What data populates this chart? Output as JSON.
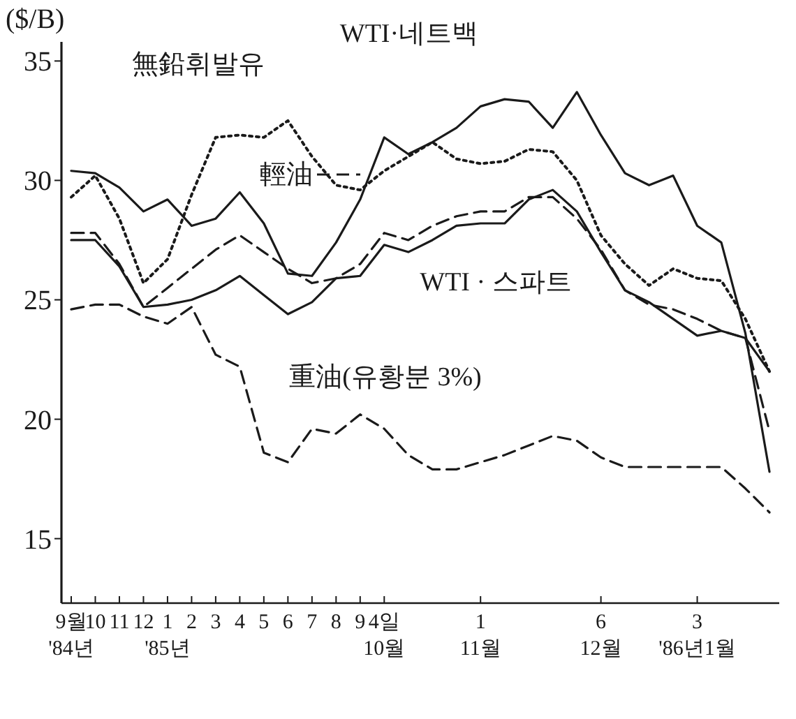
{
  "chart_data": {
    "type": "line",
    "ylabel": "($/B)",
    "categories": [
      "9월\n'84년",
      "10",
      "11",
      "12",
      "1\n'85년",
      "2",
      "3",
      "4",
      "5",
      "6",
      "7",
      "8",
      "9",
      "4일\n10월",
      null,
      null,
      null,
      "1\n11월",
      null,
      null,
      null,
      null,
      "6\n12월",
      null,
      null,
      null,
      "3\n'86년1월",
      null,
      null,
      null
    ],
    "ylim": [
      12.3,
      35.8
    ],
    "yticks": [
      15,
      20,
      25,
      30,
      35
    ],
    "grid": false,
    "marker": "none",
    "series": [
      {
        "name": "WTI·네트백",
        "color": "#1a1a1a",
        "line_style": "solid",
        "values": [
          30.4,
          30.3,
          29.7,
          28.7,
          29.2,
          28.1,
          28.4,
          29.5,
          28.2,
          26.1,
          26.0,
          27.4,
          29.2,
          31.8,
          31.1,
          31.6,
          32.2,
          33.1,
          33.4,
          33.3,
          32.2,
          33.7,
          31.9,
          30.3,
          29.8,
          30.2,
          28.1,
          27.4,
          23.6,
          17.8
        ]
      },
      {
        "name": "無鉛휘발유",
        "color": "#1a1a1a",
        "line_style": "dotted",
        "values": [
          29.3,
          30.2,
          28.4,
          25.7,
          26.7,
          29.4,
          31.8,
          31.9,
          31.8,
          32.5,
          31.0,
          29.8,
          29.6,
          30.4,
          31.0,
          31.6,
          30.9,
          30.7,
          30.8,
          31.3,
          31.2,
          30.0,
          27.7,
          26.5,
          25.6,
          26.3,
          25.9,
          25.8,
          24.2,
          22.0
        ]
      },
      {
        "name": "輕油",
        "color": "#1a1a1a",
        "line_style": "dashed",
        "values": [
          27.8,
          27.8,
          26.5,
          24.7,
          25.5,
          26.3,
          27.1,
          27.7,
          27.0,
          26.3,
          25.7,
          25.9,
          26.5,
          27.8,
          27.5,
          28.1,
          28.5,
          28.7,
          28.7,
          29.3,
          29.3,
          28.4,
          27.1,
          25.4,
          24.8,
          24.6,
          24.2,
          23.7,
          23.4,
          19.5
        ]
      },
      {
        "name": "WTI · 스파트",
        "color": "#1a1a1a",
        "line_style": "solid",
        "values": [
          27.5,
          27.5,
          26.4,
          24.7,
          24.8,
          25.0,
          25.4,
          26.0,
          25.2,
          24.4,
          24.9,
          25.9,
          26.0,
          27.3,
          27.0,
          27.5,
          28.1,
          28.2,
          28.2,
          29.2,
          29.6,
          28.7,
          27.0,
          25.4,
          24.9,
          24.2,
          23.5,
          23.7,
          23.4,
          22.0
        ]
      },
      {
        "name": "重油(유황분 3%)",
        "color": "#1a1a1a",
        "line_style": "dashed",
        "values": [
          24.6,
          24.8,
          24.8,
          24.3,
          24.0,
          24.7,
          22.7,
          22.2,
          18.6,
          18.2,
          19.6,
          19.4,
          20.2,
          19.6,
          18.5,
          17.9,
          17.9,
          18.2,
          18.5,
          18.9,
          19.3,
          19.1,
          18.4,
          18.0,
          18.0,
          18.0,
          18.0,
          18.0,
          17.1,
          16.1
        ]
      }
    ]
  }
}
